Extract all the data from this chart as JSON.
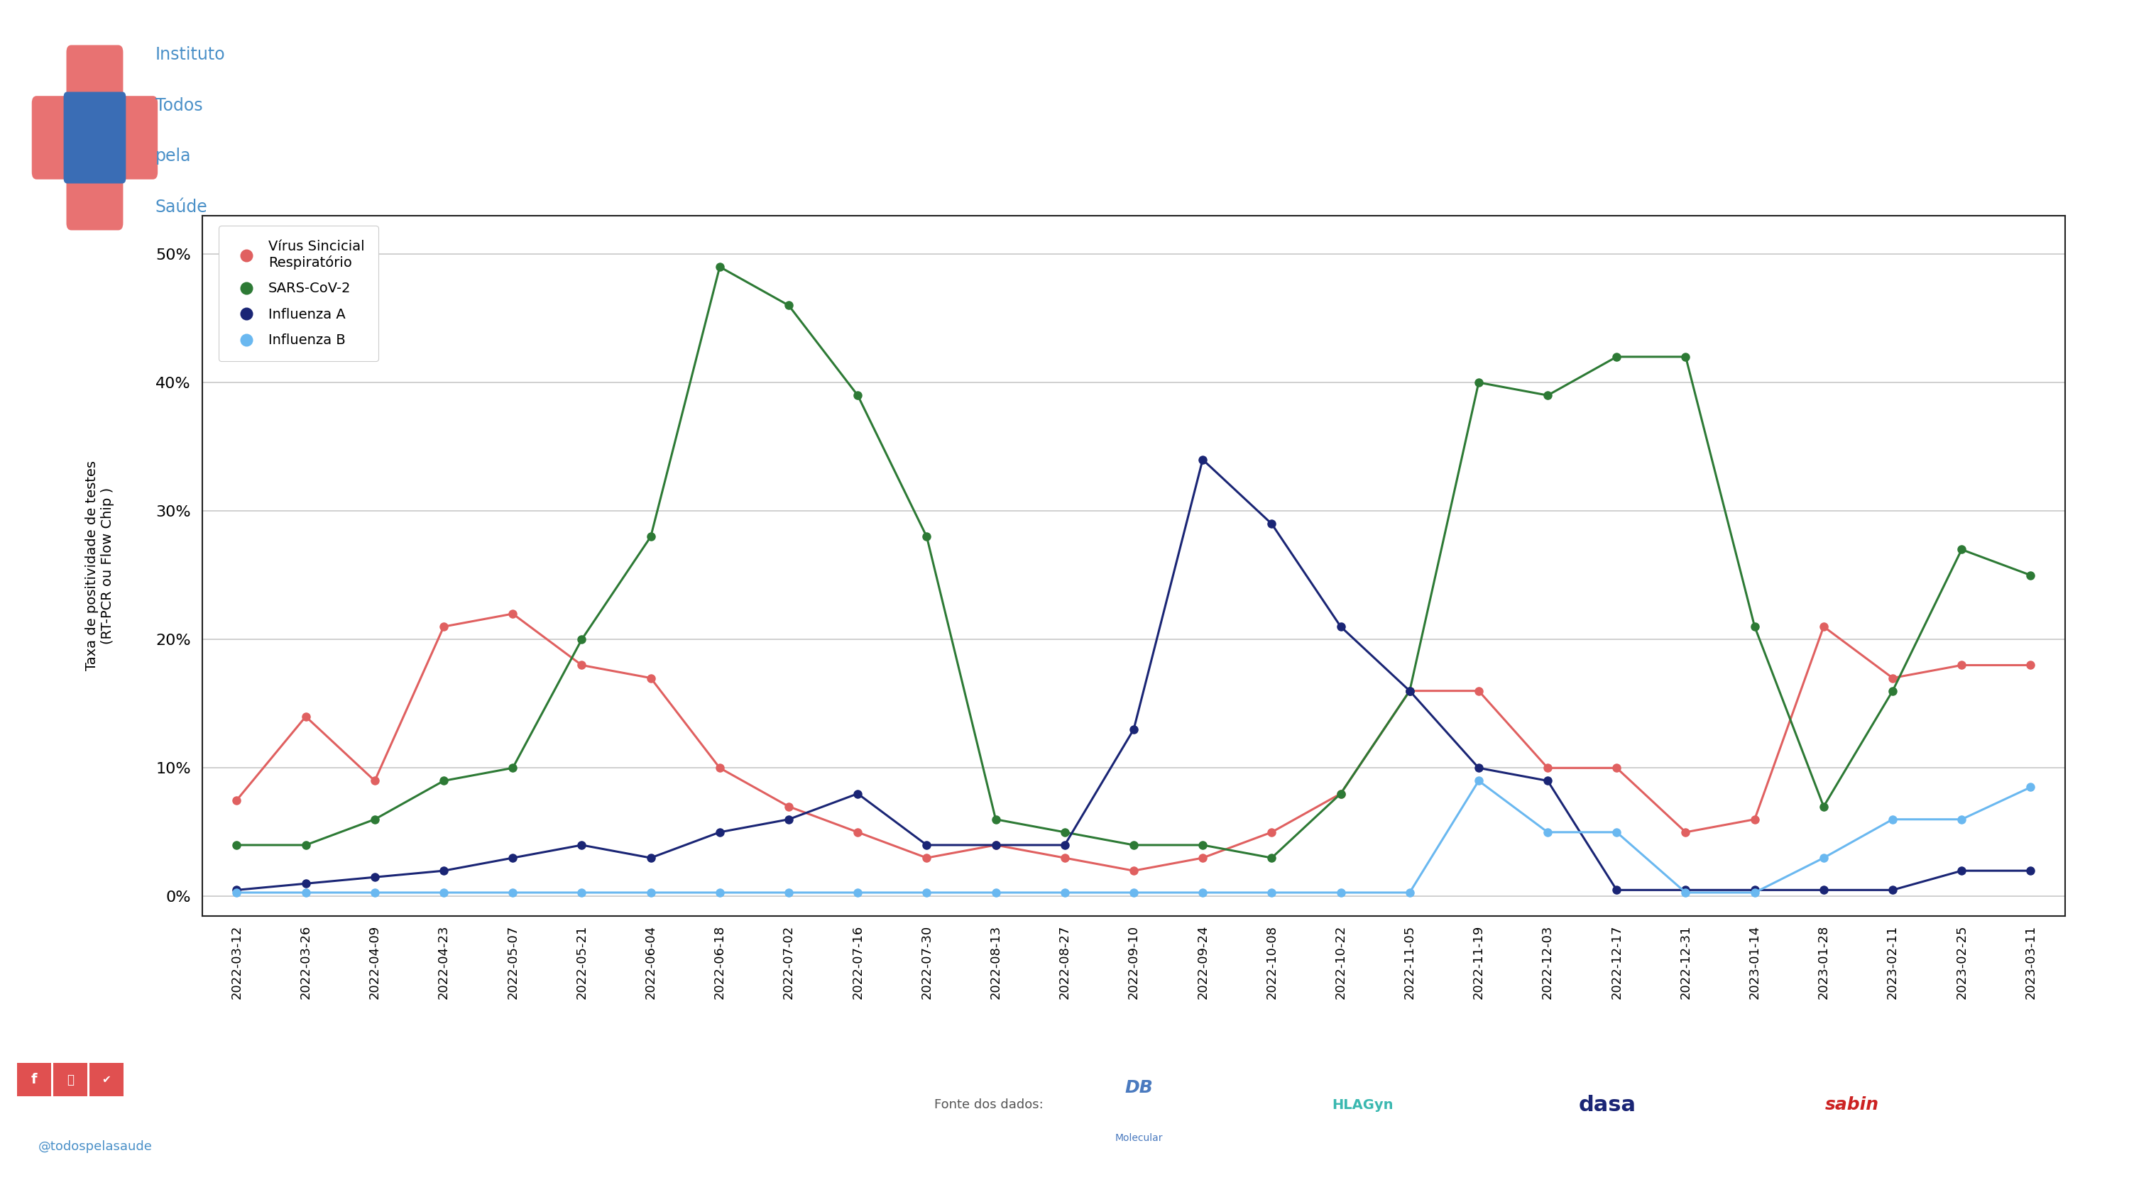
{
  "dates": [
    "2022-03-12",
    "2022-03-26",
    "2022-04-09",
    "2022-04-23",
    "2022-05-07",
    "2022-05-21",
    "2022-06-04",
    "2022-06-18",
    "2022-07-02",
    "2022-07-16",
    "2022-07-30",
    "2022-08-13",
    "2022-08-27",
    "2022-09-10",
    "2022-09-24",
    "2022-10-08",
    "2022-10-22",
    "2022-11-05",
    "2022-11-19",
    "2022-12-03",
    "2022-12-17",
    "2022-12-31",
    "2023-01-14",
    "2023-01-28",
    "2023-02-11",
    "2023-02-25",
    "2023-03-11"
  ],
  "vsincicial": [
    7.5,
    14.0,
    9.0,
    21.0,
    22.0,
    18.0,
    17.0,
    10.0,
    7.0,
    5.0,
    3.0,
    4.0,
    3.0,
    2.0,
    3.0,
    5.0,
    8.0,
    16.0,
    16.0,
    10.0,
    10.0,
    5.0,
    6.0,
    21.0,
    17.0,
    18.0,
    18.0
  ],
  "sars": [
    4.0,
    4.0,
    6.0,
    9.0,
    10.0,
    20.0,
    28.0,
    49.0,
    46.0,
    39.0,
    28.0,
    6.0,
    5.0,
    4.0,
    4.0,
    3.0,
    8.0,
    16.0,
    40.0,
    39.0,
    42.0,
    42.0,
    21.0,
    7.0,
    16.0,
    27.0,
    25.0
  ],
  "influenza_a": [
    0.5,
    1.0,
    1.5,
    2.0,
    3.0,
    4.0,
    3.0,
    5.0,
    6.0,
    8.0,
    4.0,
    4.0,
    4.0,
    13.0,
    34.0,
    29.0,
    21.0,
    16.0,
    10.0,
    9.0,
    0.5,
    0.5,
    0.5,
    0.5,
    0.5,
    2.0,
    2.0
  ],
  "influenza_b": [
    0.3,
    0.3,
    0.3,
    0.3,
    0.3,
    0.3,
    0.3,
    0.3,
    0.3,
    0.3,
    0.3,
    0.3,
    0.3,
    0.3,
    0.3,
    0.3,
    0.3,
    0.3,
    9.0,
    5.0,
    5.0,
    0.3,
    0.3,
    3.0,
    6.0,
    6.0,
    8.5
  ],
  "color_vsincicial": "#e06060",
  "color_sars": "#2d7a35",
  "color_influenza_a": "#1a2575",
  "color_influenza_b": "#6ab8f0",
  "ylabel_line1": "Taxa de positividade de testes",
  "ylabel_line2": "(RT-PCR ou Flow Chip )",
  "bg_color": "#ffffff",
  "grid_color": "#c8c8c8",
  "legend_vsincicial": "Vírus Sincicial\nRespiratório",
  "legend_sars": "SARS-CoV-2",
  "legend_influenza_a": "Influenza A",
  "legend_influenza_b": "Influenza B",
  "yticks": [
    0,
    10,
    20,
    30,
    40,
    50
  ],
  "ylim": [
    -1.5,
    53
  ],
  "logo_text_color": "#4a90c8",
  "logo_red": "#e87272",
  "logo_blue": "#3a6db5",
  "footer_social_color": "#e05050",
  "footer_handle_color": "#4a90c8",
  "footer_source_color": "#555555",
  "footer_db_color": "#4a7abf",
  "footer_dasa_color": "#1a2575",
  "footer_sabin_color": "#cc2222"
}
